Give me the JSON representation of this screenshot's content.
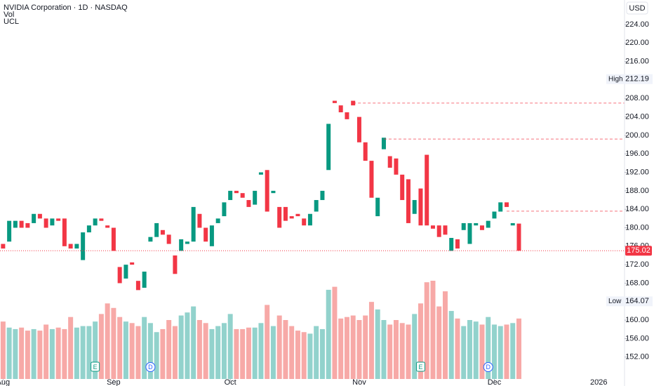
{
  "chart_data": {
    "type": "candlestick",
    "title": "NVIDIA Corporation · 1D · NASDAQ",
    "indicators": [
      "Vol",
      "UCL"
    ],
    "currency": "USD",
    "up_color": "#089981",
    "down_color": "#f23645",
    "volume_up_color": "#92d2cc",
    "volume_down_color": "#f7a9a7",
    "open": [
      176.5,
      177,
      180,
      181.5,
      181,
      181,
      183,
      182,
      180.5,
      182,
      182,
      176.5,
      175.5,
      173,
      179,
      180.5,
      182,
      180.5,
      180,
      171.5,
      169,
      172.5,
      168.5,
      167,
      177,
      178,
      179.5,
      178.5,
      174,
      175,
      176.5,
      177,
      183,
      180,
      176,
      181,
      182.5,
      186,
      188,
      187.5,
      186,
      185,
      191.5,
      192.5,
      187.5,
      184.5,
      184.5,
      182.5,
      183,
      182,
      180.5,
      183.5,
      186,
      192.5,
      207.5,
      206.5,
      205,
      207.5,
      204,
      198.5,
      194.5,
      182.5,
      197,
      195.5,
      195,
      191.5,
      190.5,
      183,
      188.5,
      195.8,
      180.5,
      180.5,
      180.5,
      175,
      177.5,
      179.5,
      176.5,
      180.5,
      180.5,
      180,
      182,
      183.5,
      185.5,
      180.5,
      180.9
    ],
    "high": 212.19,
    "low": 164.07,
    "close": [
      175.5,
      181.5,
      181.5,
      180,
      180,
      183,
      182,
      180,
      182,
      181.5,
      176,
      175.5,
      176.5,
      179,
      180.5,
      182,
      181.5,
      180,
      175,
      168,
      172,
      172,
      166.5,
      170.5,
      178,
      181,
      178.5,
      176.5,
      170,
      177.5,
      177,
      184.5,
      180,
      177,
      180.5,
      182,
      185.5,
      188,
      187.5,
      186.5,
      184.5,
      188,
      192,
      183.5,
      188,
      180,
      181.5,
      182,
      182.5,
      180.5,
      183,
      186,
      188,
      202.5,
      207,
      205,
      203.5,
      206.5,
      198.5,
      194.5,
      186.5,
      186.5,
      199.5,
      193,
      191.5,
      186,
      181,
      186,
      180.5,
      180.5,
      179.8,
      178,
      178.5,
      177.8,
      175.5,
      181,
      181,
      181,
      179.5,
      181.5,
      183.5,
      185.5,
      184.5,
      181,
      175.02
    ],
    "volume": [
      190,
      170,
      165,
      170,
      160,
      165,
      160,
      180,
      165,
      170,
      165,
      205,
      170,
      175,
      175,
      190,
      215,
      250,
      235,
      205,
      190,
      185,
      175,
      205,
      185,
      155,
      165,
      195,
      175,
      210,
      220,
      240,
      195,
      185,
      165,
      175,
      185,
      215,
      165,
      165,
      170,
      170,
      185,
      245,
      175,
      210,
      195,
      175,
      160,
      155,
      150,
      175,
      165,
      295,
      305,
      200,
      205,
      210,
      195,
      210,
      255,
      230,
      195,
      180,
      195,
      185,
      180,
      215,
      250,
      320,
      325,
      240,
      290,
      225,
      200,
      175,
      195,
      190,
      180,
      205,
      180,
      175,
      180,
      185,
      200
    ],
    "xlim": [
      -0.5,
      101.2
    ],
    "xticks": [
      {
        "value": 0,
        "label": "Aug"
      },
      {
        "value": 18,
        "label": "Sep"
      },
      {
        "value": 37,
        "label": "Oct"
      },
      {
        "value": 58,
        "label": "Nov"
      },
      {
        "value": 80,
        "label": "Dec"
      },
      {
        "value": 97,
        "label": "2026"
      }
    ],
    "ylim": [
      147.25,
      229.32
    ],
    "yticks": [
      {
        "value": 152,
        "label": "152.00"
      },
      {
        "value": 156,
        "label": "156.00"
      },
      {
        "value": 160,
        "label": "160.00"
      },
      {
        "value": 164,
        "label": "164.00"
      },
      {
        "value": 168,
        "label": "168.00"
      },
      {
        "value": 172,
        "label": "172.00"
      },
      {
        "value": 176,
        "label": "176.00"
      },
      {
        "value": 180,
        "label": "180.00"
      },
      {
        "value": 184,
        "label": "184.00"
      },
      {
        "value": 188,
        "label": "188.00"
      },
      {
        "value": 192,
        "label": "192.00"
      },
      {
        "value": 196,
        "label": "196.00"
      },
      {
        "value": 200,
        "label": "200.00"
      },
      {
        "value": 204,
        "label": "204.00"
      },
      {
        "value": 208,
        "label": "208.00"
      },
      {
        "value": 212,
        "label": "212.00"
      },
      {
        "value": 216,
        "label": "216.00"
      },
      {
        "value": 220,
        "label": "220.00"
      },
      {
        "value": 224,
        "label": "224.00"
      }
    ],
    "levels": [
      {
        "value": 207.0,
        "from": 57
      },
      {
        "value": 199.2,
        "from": 62
      },
      {
        "value": 183.6,
        "from": 82
      }
    ],
    "high_label": "High",
    "low_label": "Low",
    "last_price": 175.02,
    "events": [
      {
        "label": "E",
        "x": 15
      },
      {
        "label": "D",
        "x": 24
      },
      {
        "label": "E",
        "x": 68
      },
      {
        "label": "D",
        "x": 79
      }
    ]
  }
}
